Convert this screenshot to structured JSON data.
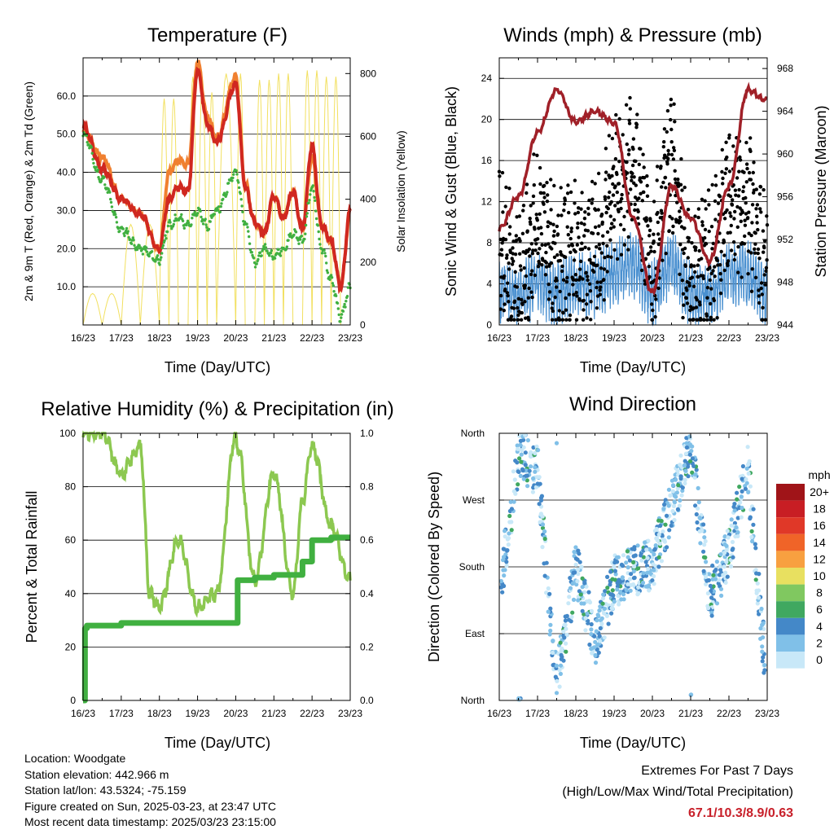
{
  "x_ticks": [
    "16/23",
    "17/23",
    "18/23",
    "19/23",
    "20/23",
    "21/23",
    "22/23",
    "23/23"
  ],
  "info": {
    "location": "Location: Woodgate",
    "elevation": "Station elevation: 442.966 m",
    "latlon": "Station lat/lon: 43.5324; -75.159",
    "created": "Figure created on Sun, 2025-03-23, at 23:47 UTC",
    "recent": "Most recent data timestamp: 2025/03/23 23:15:00"
  },
  "extremes": {
    "title": "Extremes For Past 7 Days",
    "subtitle": "(High/Low/Max Wind/Total Precipitation)",
    "value": "67.1/10.3/8.9/0.63"
  },
  "colors": {
    "temp_2m": "#d02820",
    "temp_9m": "#f08030",
    "dewpoint": "#40b040",
    "insolation": "#f2e060",
    "gust": "#000000",
    "wind": "#4a90d0",
    "pressure": "#a02028",
    "rh": "#8cc850",
    "precip": "#40b040"
  },
  "chart_data": [
    {
      "type": "line",
      "title": "Temperature (F)",
      "xlabel": "Time (Day/UTC)",
      "ylabel": "2m & 9m T (Red, Orange) & 2m Td (Green)",
      "y2label": "Solar Insolation (Yellow)",
      "x": [
        16,
        16.5,
        17,
        17.5,
        18,
        18.25,
        18.5,
        18.75,
        19,
        19.25,
        19.5,
        20,
        20.25,
        20.5,
        20.75,
        21,
        21.25,
        21.5,
        21.75,
        22,
        22.25,
        22.5,
        22.75,
        23
      ],
      "ylim": [
        0,
        70
      ],
      "y_ticks": [
        10.0,
        20.0,
        30.0,
        40.0,
        50.0,
        60.0
      ],
      "y2lim": [
        0,
        850
      ],
      "y2_ticks": [
        0,
        200,
        400,
        600,
        800
      ],
      "series": [
        {
          "values": [
            52,
            41,
            33,
            29,
            20,
            33,
            36,
            35,
            67,
            53,
            48,
            63,
            36,
            27,
            24,
            34,
            28,
            35,
            25,
            47,
            26,
            22,
            10,
            30
          ]
        },
        {
          "values": [
            51,
            44,
            33,
            29,
            20,
            40,
            43,
            42,
            69,
            55,
            49,
            65,
            37,
            27,
            24,
            34,
            28,
            35,
            25,
            44,
            26,
            22,
            10,
            29
          ]
        },
        {
          "values": [
            50,
            38,
            25,
            20,
            17,
            26,
            28,
            26,
            30,
            26,
            30,
            40,
            27,
            16,
            20,
            18,
            20,
            24,
            22,
            36,
            20,
            12,
            2,
            10
          ]
        },
        {
          "values": [
            0,
            100,
            0,
            320,
            0,
            720,
            0,
            0,
            790,
            0,
            740,
            800,
            0,
            0,
            780,
            0,
            800,
            0,
            0,
            810,
            0,
            790,
            0,
            0
          ]
        }
      ]
    },
    {
      "type": "scatter",
      "title": "Winds (mph) & Pressure (mb)",
      "xlabel": "Time (Day/UTC)",
      "ylabel": "Sonic Wind & Gust (Blue, Black)",
      "y2label": "Station Pressure (Maroon)",
      "x": [
        16,
        16.5,
        17,
        17.5,
        18,
        18.5,
        19,
        19.5,
        20,
        20.5,
        21,
        21.5,
        22,
        22.5,
        23
      ],
      "ylim": [
        0,
        26
      ],
      "y_ticks": [
        0,
        4,
        8,
        12,
        16,
        20,
        24
      ],
      "y2lim": [
        944,
        969
      ],
      "y2_ticks": [
        944,
        948,
        952,
        956,
        960,
        964,
        968
      ],
      "series": [
        {
          "values": [
            3,
            3,
            4,
            3,
            4,
            4,
            5,
            6,
            3,
            6,
            3,
            3,
            5,
            5,
            3
          ]
        },
        {
          "values": [
            8,
            4,
            10,
            6,
            7,
            7,
            13,
            15,
            7,
            16,
            4,
            6,
            12,
            11,
            6
          ]
        },
        {
          "values": [
            953,
            956,
            962,
            966,
            963,
            964,
            963,
            954,
            947,
            957,
            954,
            950,
            957,
            966,
            965
          ]
        }
      ]
    },
    {
      "type": "line",
      "title": "Relative Humidity (%) & Precipitation (in)",
      "xlabel": "Time (Day/UTC)",
      "ylabel": "Percent & Total Rainfall",
      "x": [
        16,
        16.05,
        16.1,
        16.5,
        17,
        17.5,
        17.75,
        18,
        18.5,
        19,
        19.5,
        20,
        20.05,
        20.5,
        21,
        21.5,
        21.75,
        22,
        22.5,
        23
      ],
      "ylim": [
        0,
        100
      ],
      "y_ticks": [
        0,
        20,
        40,
        60,
        80,
        100
      ],
      "y2lim": [
        0,
        1
      ],
      "y2_ticks": [
        0.0,
        0.2,
        0.4,
        0.6,
        0.8,
        1.0
      ],
      "series": [
        {
          "values": [
            100,
            100,
            100,
            100,
            85,
            95,
            40,
            35,
            60,
            35,
            40,
            99,
            95,
            45,
            85,
            40,
            75,
            95,
            65,
            45
          ]
        },
        {
          "values": [
            0.0,
            0.27,
            0.28,
            0.28,
            0.29,
            0.29,
            0.29,
            0.29,
            0.29,
            0.29,
            0.29,
            0.29,
            0.45,
            0.46,
            0.47,
            0.47,
            0.52,
            0.6,
            0.61,
            0.61
          ]
        }
      ]
    },
    {
      "type": "scatter",
      "title": "Wind Direction",
      "xlabel": "Time (Day/UTC)",
      "ylabel": "Direction (Colored By Speed)",
      "ylim": [
        0,
        360
      ],
      "y_ticks": [
        "North",
        "East",
        "South",
        "West",
        "North"
      ],
      "x": [
        16.1,
        16.5,
        17,
        17.5,
        18,
        18.5,
        19,
        19.5,
        20,
        20.5,
        21,
        21.5,
        22,
        22.5,
        23
      ],
      "values": [
        180,
        330,
        310,
        20,
        180,
        80,
        160,
        175,
        185,
        260,
        340,
        140,
        200,
        310,
        10
      ],
      "speed_legend_title": "mph",
      "speed_legend": [
        "20+",
        "18",
        "16",
        "14",
        "12",
        "10",
        "8",
        "6",
        "4",
        "2",
        "0"
      ],
      "speed_colors": [
        "#a01418",
        "#c81e24",
        "#e03828",
        "#f06428",
        "#f8a040",
        "#e8e060",
        "#80c860",
        "#40a860",
        "#4488c8",
        "#80c0e8",
        "#c8e8f8"
      ]
    }
  ]
}
